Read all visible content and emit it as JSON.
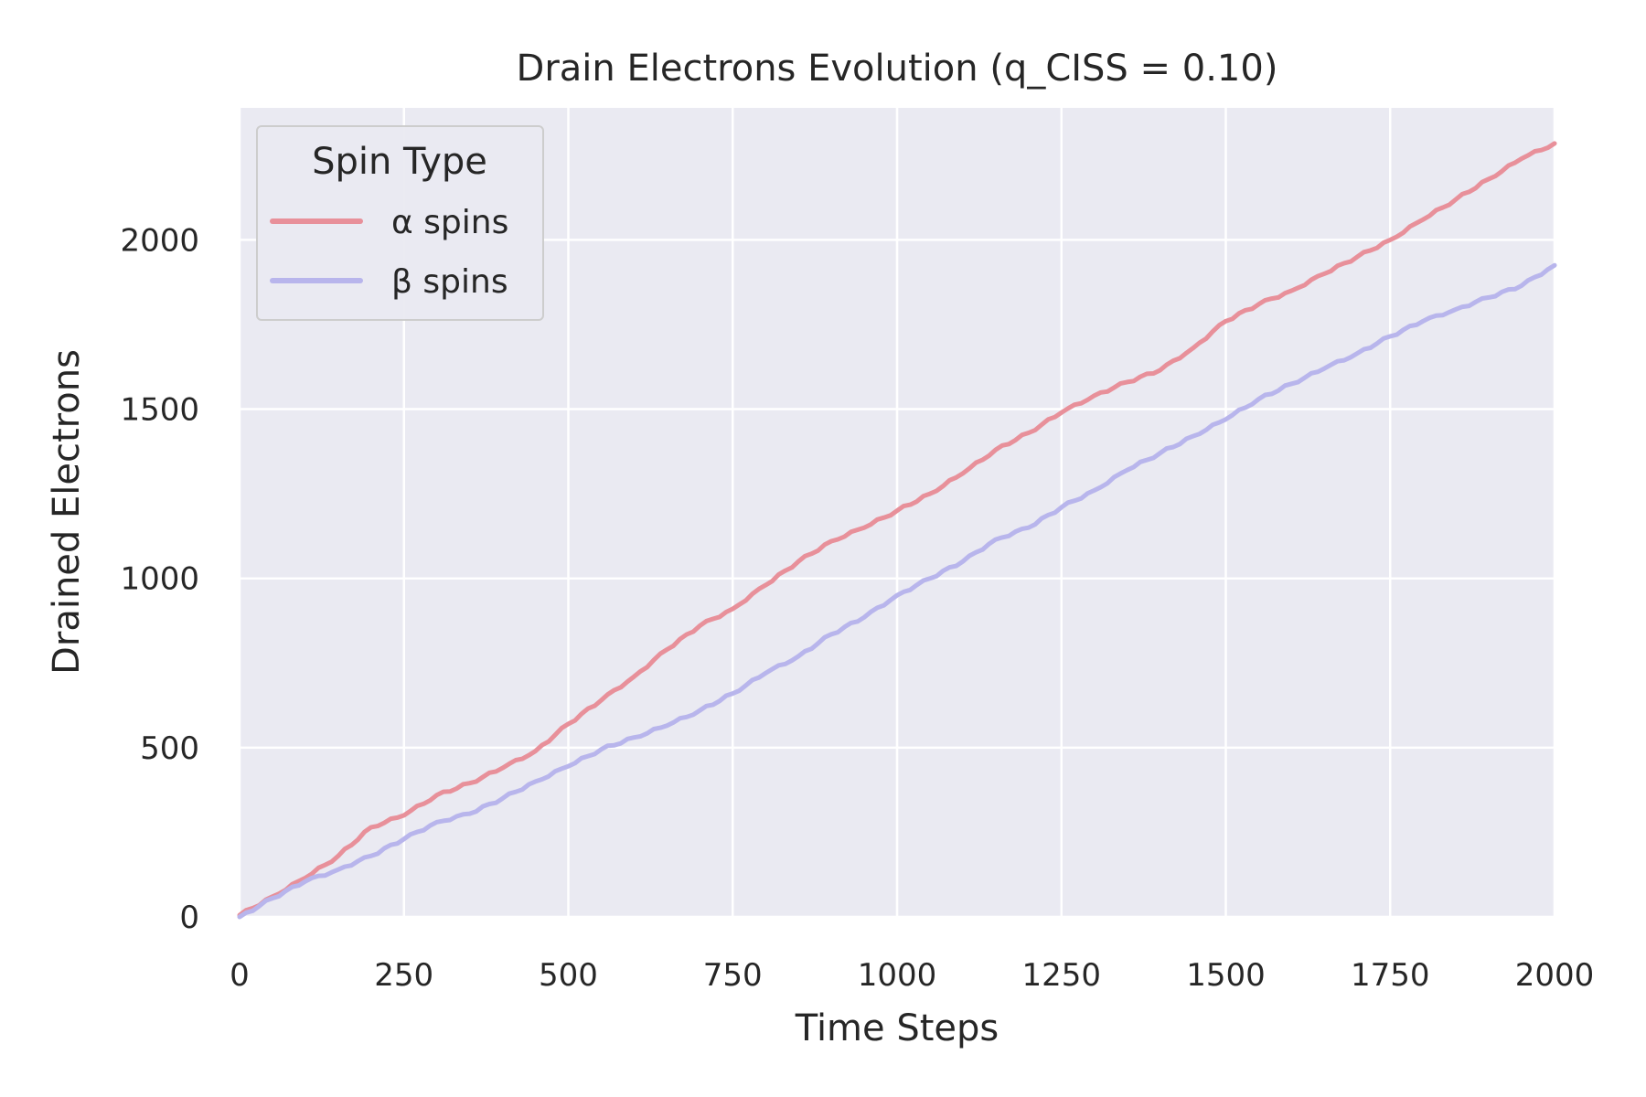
{
  "chart_data": {
    "type": "line",
    "title": "Drain Electrons Evolution (q_CISS = 0.10)",
    "xlabel": "Time Steps",
    "ylabel": "Drained Electrons",
    "xlim": [
      0,
      2000
    ],
    "ylim": [
      0,
      2390
    ],
    "xticks": [
      0,
      250,
      500,
      750,
      1000,
      1250,
      1500,
      1750,
      2000
    ],
    "yticks": [
      0,
      500,
      1000,
      1500,
      2000
    ],
    "grid": true,
    "legend": {
      "title": "Spin Type",
      "position": "top-left"
    },
    "x": [
      0,
      50,
      100,
      150,
      200,
      250,
      300,
      350,
      400,
      450,
      500,
      550,
      600,
      650,
      700,
      750,
      800,
      850,
      900,
      950,
      1000,
      1050,
      1100,
      1150,
      1200,
      1250,
      1300,
      1350,
      1400,
      1450,
      1500,
      1550,
      1600,
      1650,
      1700,
      1750,
      1800,
      1850,
      1900,
      1950,
      2000
    ],
    "series": [
      {
        "name": "α spins",
        "color": "#e8909a",
        "values": [
          5,
          60,
          115,
          180,
          265,
          300,
          360,
          395,
          440,
          490,
          570,
          640,
          710,
          790,
          860,
          910,
          980,
          1050,
          1110,
          1150,
          1200,
          1250,
          1310,
          1380,
          1430,
          1490,
          1540,
          1580,
          1615,
          1680,
          1760,
          1810,
          1850,
          1900,
          1950,
          2000,
          2060,
          2120,
          2180,
          2240,
          2285
        ]
      },
      {
        "name": "β spins",
        "color": "#b8b5ec",
        "values": [
          0,
          55,
          105,
          140,
          180,
          230,
          280,
          305,
          350,
          400,
          445,
          495,
          530,
          565,
          610,
          660,
          720,
          770,
          835,
          885,
          950,
          1000,
          1050,
          1115,
          1150,
          1210,
          1260,
          1320,
          1370,
          1420,
          1470,
          1530,
          1575,
          1620,
          1665,
          1715,
          1760,
          1795,
          1830,
          1865,
          1925
        ]
      }
    ]
  }
}
